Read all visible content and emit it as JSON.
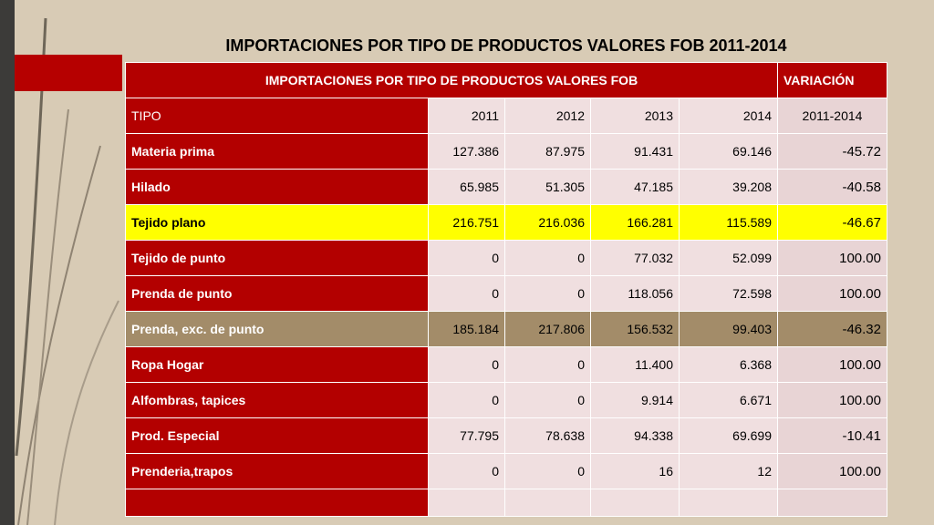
{
  "slide_title": "IMPORTACIONES POR TIPO DE PRODUCTOS VALORES FOB 2011-2014",
  "table": {
    "header_main": "IMPORTACIONES POR TIPO DE PRODUCTOS VALORES FOB",
    "header_variation": "VARIACIÓN",
    "columns": [
      "TIPO",
      "2011",
      "2012",
      "2013",
      "2014",
      "2011-2014"
    ],
    "rows": [
      {
        "tipo": "Materia prima",
        "v2011": "127.386",
        "v2012": "87.975",
        "v2013": "91.431",
        "v2014": "69.146",
        "variacion": "-45.72"
      },
      {
        "tipo": "Hilado",
        "v2011": "65.985",
        "v2012": "51.305",
        "v2013": "47.185",
        "v2014": "39.208",
        "variacion": "-40.58"
      },
      {
        "tipo": "Tejido plano",
        "v2011": "216.751",
        "v2012": "216.036",
        "v2013": "166.281",
        "v2014": "115.589",
        "variacion": "-46.67"
      },
      {
        "tipo": "Tejido de punto",
        "v2011": "0",
        "v2012": "0",
        "v2013": "77.032",
        "v2014": "52.099",
        "variacion": "100.00"
      },
      {
        "tipo": "Prenda de punto",
        "v2011": "0",
        "v2012": "0",
        "v2013": "118.056",
        "v2014": "72.598",
        "variacion": "100.00"
      },
      {
        "tipo": "Prenda, exc. de punto",
        "v2011": "185.184",
        "v2012": "217.806",
        "v2013": "156.532",
        "v2014": "99.403",
        "variacion": "-46.32"
      },
      {
        "tipo": "Ropa Hogar",
        "v2011": "0",
        "v2012": "0",
        "v2013": "11.400",
        "v2014": "6.368",
        "variacion": "100.00"
      },
      {
        "tipo": "Alfombras, tapices",
        "v2011": "0",
        "v2012": "0",
        "v2013": "9.914",
        "v2014": "6.671",
        "variacion": "100.00"
      },
      {
        "tipo": "Prod. Especial",
        "v2011": "77.795",
        "v2012": "78.638",
        "v2013": "94.338",
        "v2014": "69.699",
        "variacion": "-10.41"
      },
      {
        "tipo": "Prenderia,trapos",
        "v2011": "0",
        "v2012": "0",
        "v2013": "16",
        "v2014": "12",
        "variacion": "100.00"
      }
    ]
  },
  "colors": {
    "background": "#d8cbb5",
    "header_red": "#b30000",
    "cell_pink": "#f0dfe0",
    "highlight_yellow": "#ffff00",
    "highlight_tan": "#a38c69"
  }
}
